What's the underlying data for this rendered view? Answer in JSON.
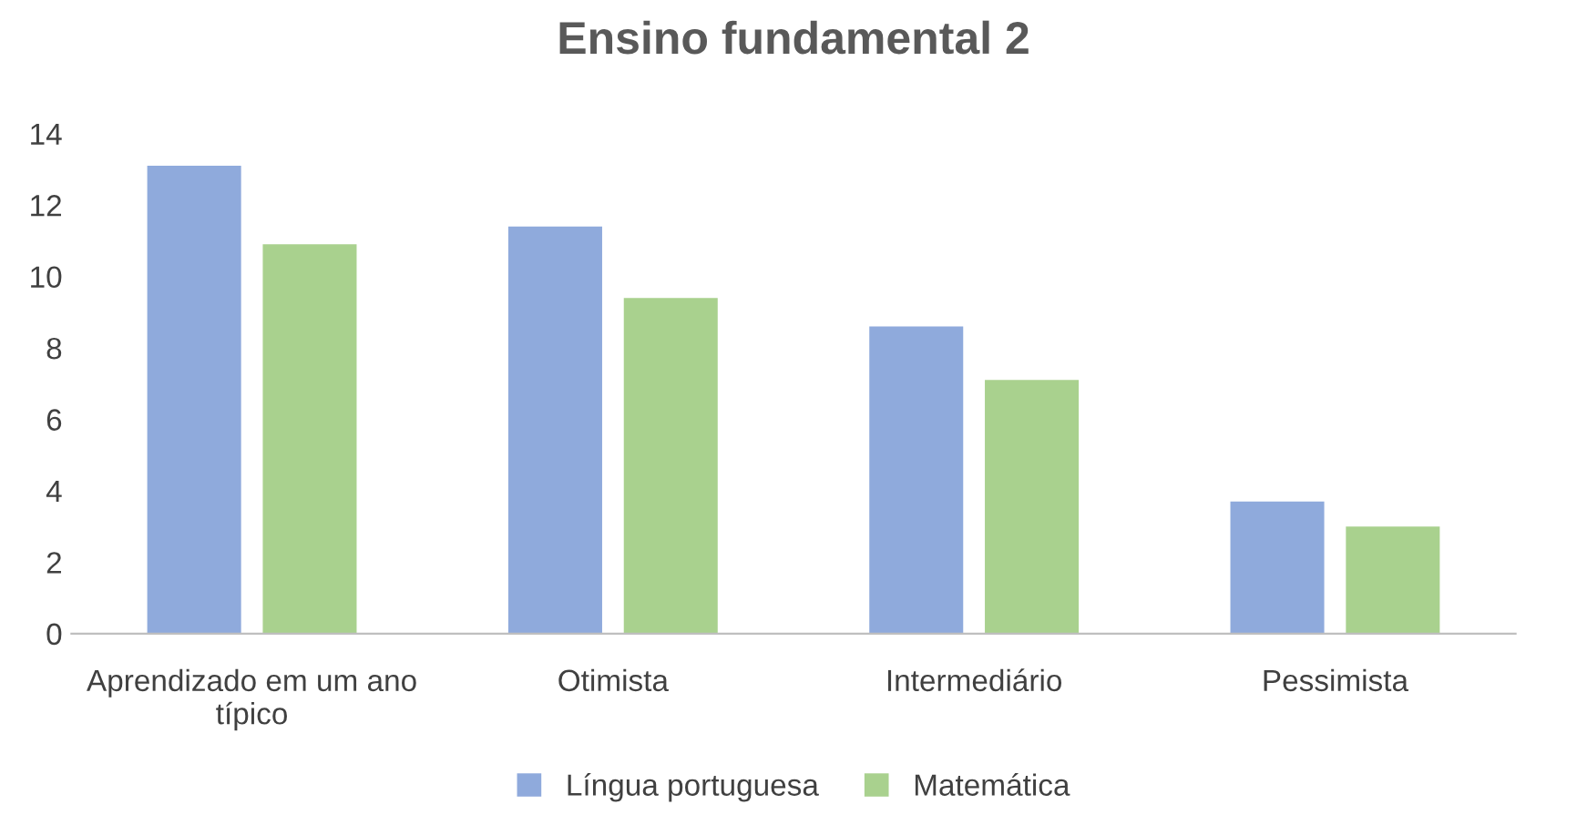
{
  "chart_data": {
    "type": "bar",
    "title": "Ensino fundamental 2",
    "categories": [
      "Aprendizado em um ano\ntípico",
      "Otimista",
      "Intermediário",
      "Pessimista"
    ],
    "series": [
      {
        "name": "Língua portuguesa",
        "color": "#8faadc",
        "values": [
          13.1,
          11.4,
          8.6,
          3.7
        ]
      },
      {
        "name": "Matemática",
        "color": "#a9d18e",
        "values": [
          10.9,
          9.4,
          7.1,
          3.0
        ]
      }
    ],
    "ylim": [
      0,
      14
    ],
    "yticks": [
      0,
      2,
      4,
      6,
      8,
      10,
      12,
      14
    ],
    "grid": false,
    "legend": "bottom"
  }
}
